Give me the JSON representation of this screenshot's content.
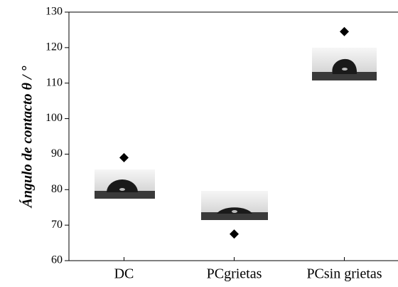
{
  "chart_data": {
    "type": "scatter",
    "ylabel": "Ángulo de contacto θ / °",
    "categories": [
      "DC",
      "PCgrietas",
      "PCsin grietas"
    ],
    "values": [
      89,
      67.5,
      124.5
    ],
    "color": "#000000",
    "ylim": [
      60,
      130
    ],
    "yticks": [
      60,
      70,
      80,
      90,
      100,
      110,
      120,
      130
    ]
  }
}
